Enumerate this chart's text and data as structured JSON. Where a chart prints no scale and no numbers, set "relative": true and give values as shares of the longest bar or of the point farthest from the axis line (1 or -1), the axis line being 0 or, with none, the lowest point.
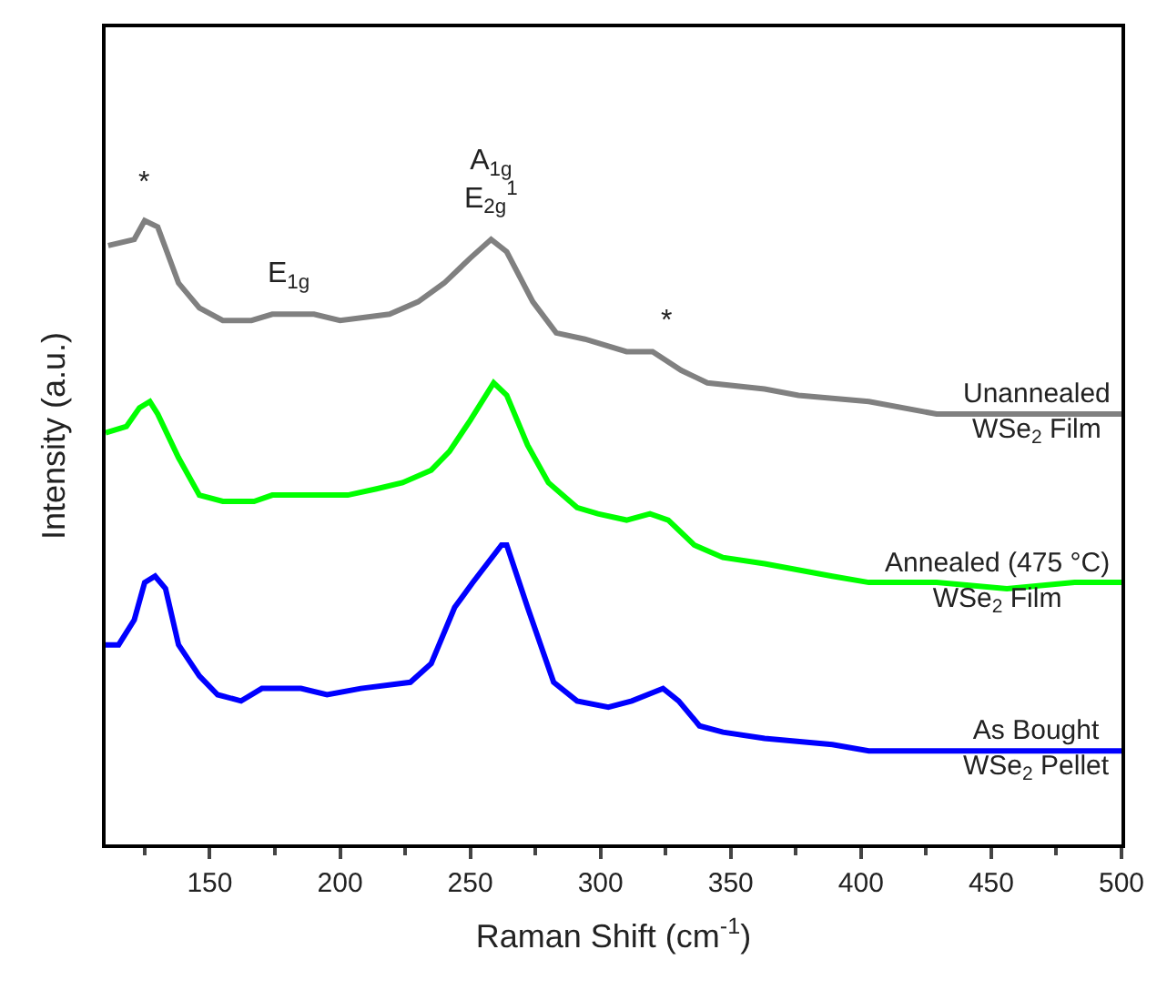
{
  "chart_data": {
    "type": "line",
    "relative": true,
    "xlabel": "Raman Shift (cm$^{-1}$)",
    "ylabel": "Intensity (a.u.)",
    "xlim": [
      110,
      500
    ],
    "xticks": [
      150,
      200,
      250,
      300,
      350,
      400,
      450,
      500
    ],
    "legend": false,
    "marker": "none",
    "line_style": "solid",
    "series": [
      {
        "name": "Unannealed\nWSe$_{2}$ Film",
        "color": "#808080",
        "x": [
          111,
          121,
          125,
          130,
          138,
          146,
          155,
          166,
          174,
          190,
          200,
          219,
          230,
          240,
          250,
          258,
          264,
          274,
          283,
          294,
          310,
          320,
          331,
          341,
          363,
          376,
          403,
          429,
          456,
          500
        ],
        "values": [
          0.96,
          0.97,
          1.0,
          0.99,
          0.9,
          0.86,
          0.84,
          0.84,
          0.85,
          0.85,
          0.84,
          0.85,
          0.87,
          0.9,
          0.94,
          0.97,
          0.95,
          0.87,
          0.82,
          0.81,
          0.79,
          0.79,
          0.76,
          0.74,
          0.73,
          0.72,
          0.71,
          0.69,
          0.69,
          0.69
        ]
      },
      {
        "name": "Annealed (475 °C)\nWSe$_{2}$ Film",
        "color": "#00ff00",
        "x": [
          110,
          118,
          123,
          127,
          130,
          138,
          146,
          155,
          167,
          174,
          186,
          195,
          203,
          214,
          224,
          235,
          242,
          250,
          259,
          264,
          272,
          280,
          291,
          299,
          310,
          319,
          326,
          336,
          347,
          363,
          389,
          403,
          429,
          456,
          482,
          500
        ],
        "values": [
          0.66,
          0.67,
          0.7,
          0.71,
          0.69,
          0.62,
          0.56,
          0.55,
          0.55,
          0.56,
          0.56,
          0.56,
          0.56,
          0.57,
          0.58,
          0.6,
          0.63,
          0.68,
          0.74,
          0.72,
          0.64,
          0.58,
          0.54,
          0.53,
          0.52,
          0.53,
          0.52,
          0.48,
          0.46,
          0.45,
          0.43,
          0.42,
          0.42,
          0.41,
          0.42,
          0.42
        ]
      },
      {
        "name": "As Bought\nWSe$_{2}$ Pellet",
        "color": "#0000ff",
        "x": [
          110,
          115,
          121,
          125,
          129,
          133,
          138,
          146,
          153,
          162,
          170,
          177,
          185,
          195,
          208,
          227,
          235,
          244,
          251,
          262,
          264,
          272,
          282,
          291,
          303,
          312,
          324,
          330,
          338,
          347,
          363,
          389,
          403,
          429,
          456,
          500
        ],
        "values": [
          0.32,
          0.32,
          0.36,
          0.42,
          0.43,
          0.41,
          0.32,
          0.27,
          0.24,
          0.23,
          0.25,
          0.25,
          0.25,
          0.24,
          0.25,
          0.26,
          0.29,
          0.38,
          0.42,
          0.48,
          0.48,
          0.38,
          0.26,
          0.23,
          0.22,
          0.23,
          0.25,
          0.23,
          0.19,
          0.18,
          0.17,
          0.16,
          0.15,
          0.15,
          0.15,
          0.15
        ]
      }
    ],
    "annotations": [
      {
        "text": "*",
        "x": 125,
        "y": 1.0
      },
      {
        "text": "E$_{1g}$",
        "x": 180,
        "y": 0.85
      },
      {
        "text": "A$_{1g}$\nE$_{2g}$$^{1}$",
        "x": 258,
        "y": 0.97
      },
      {
        "text": "*",
        "x": 325,
        "y": 0.78
      }
    ]
  }
}
